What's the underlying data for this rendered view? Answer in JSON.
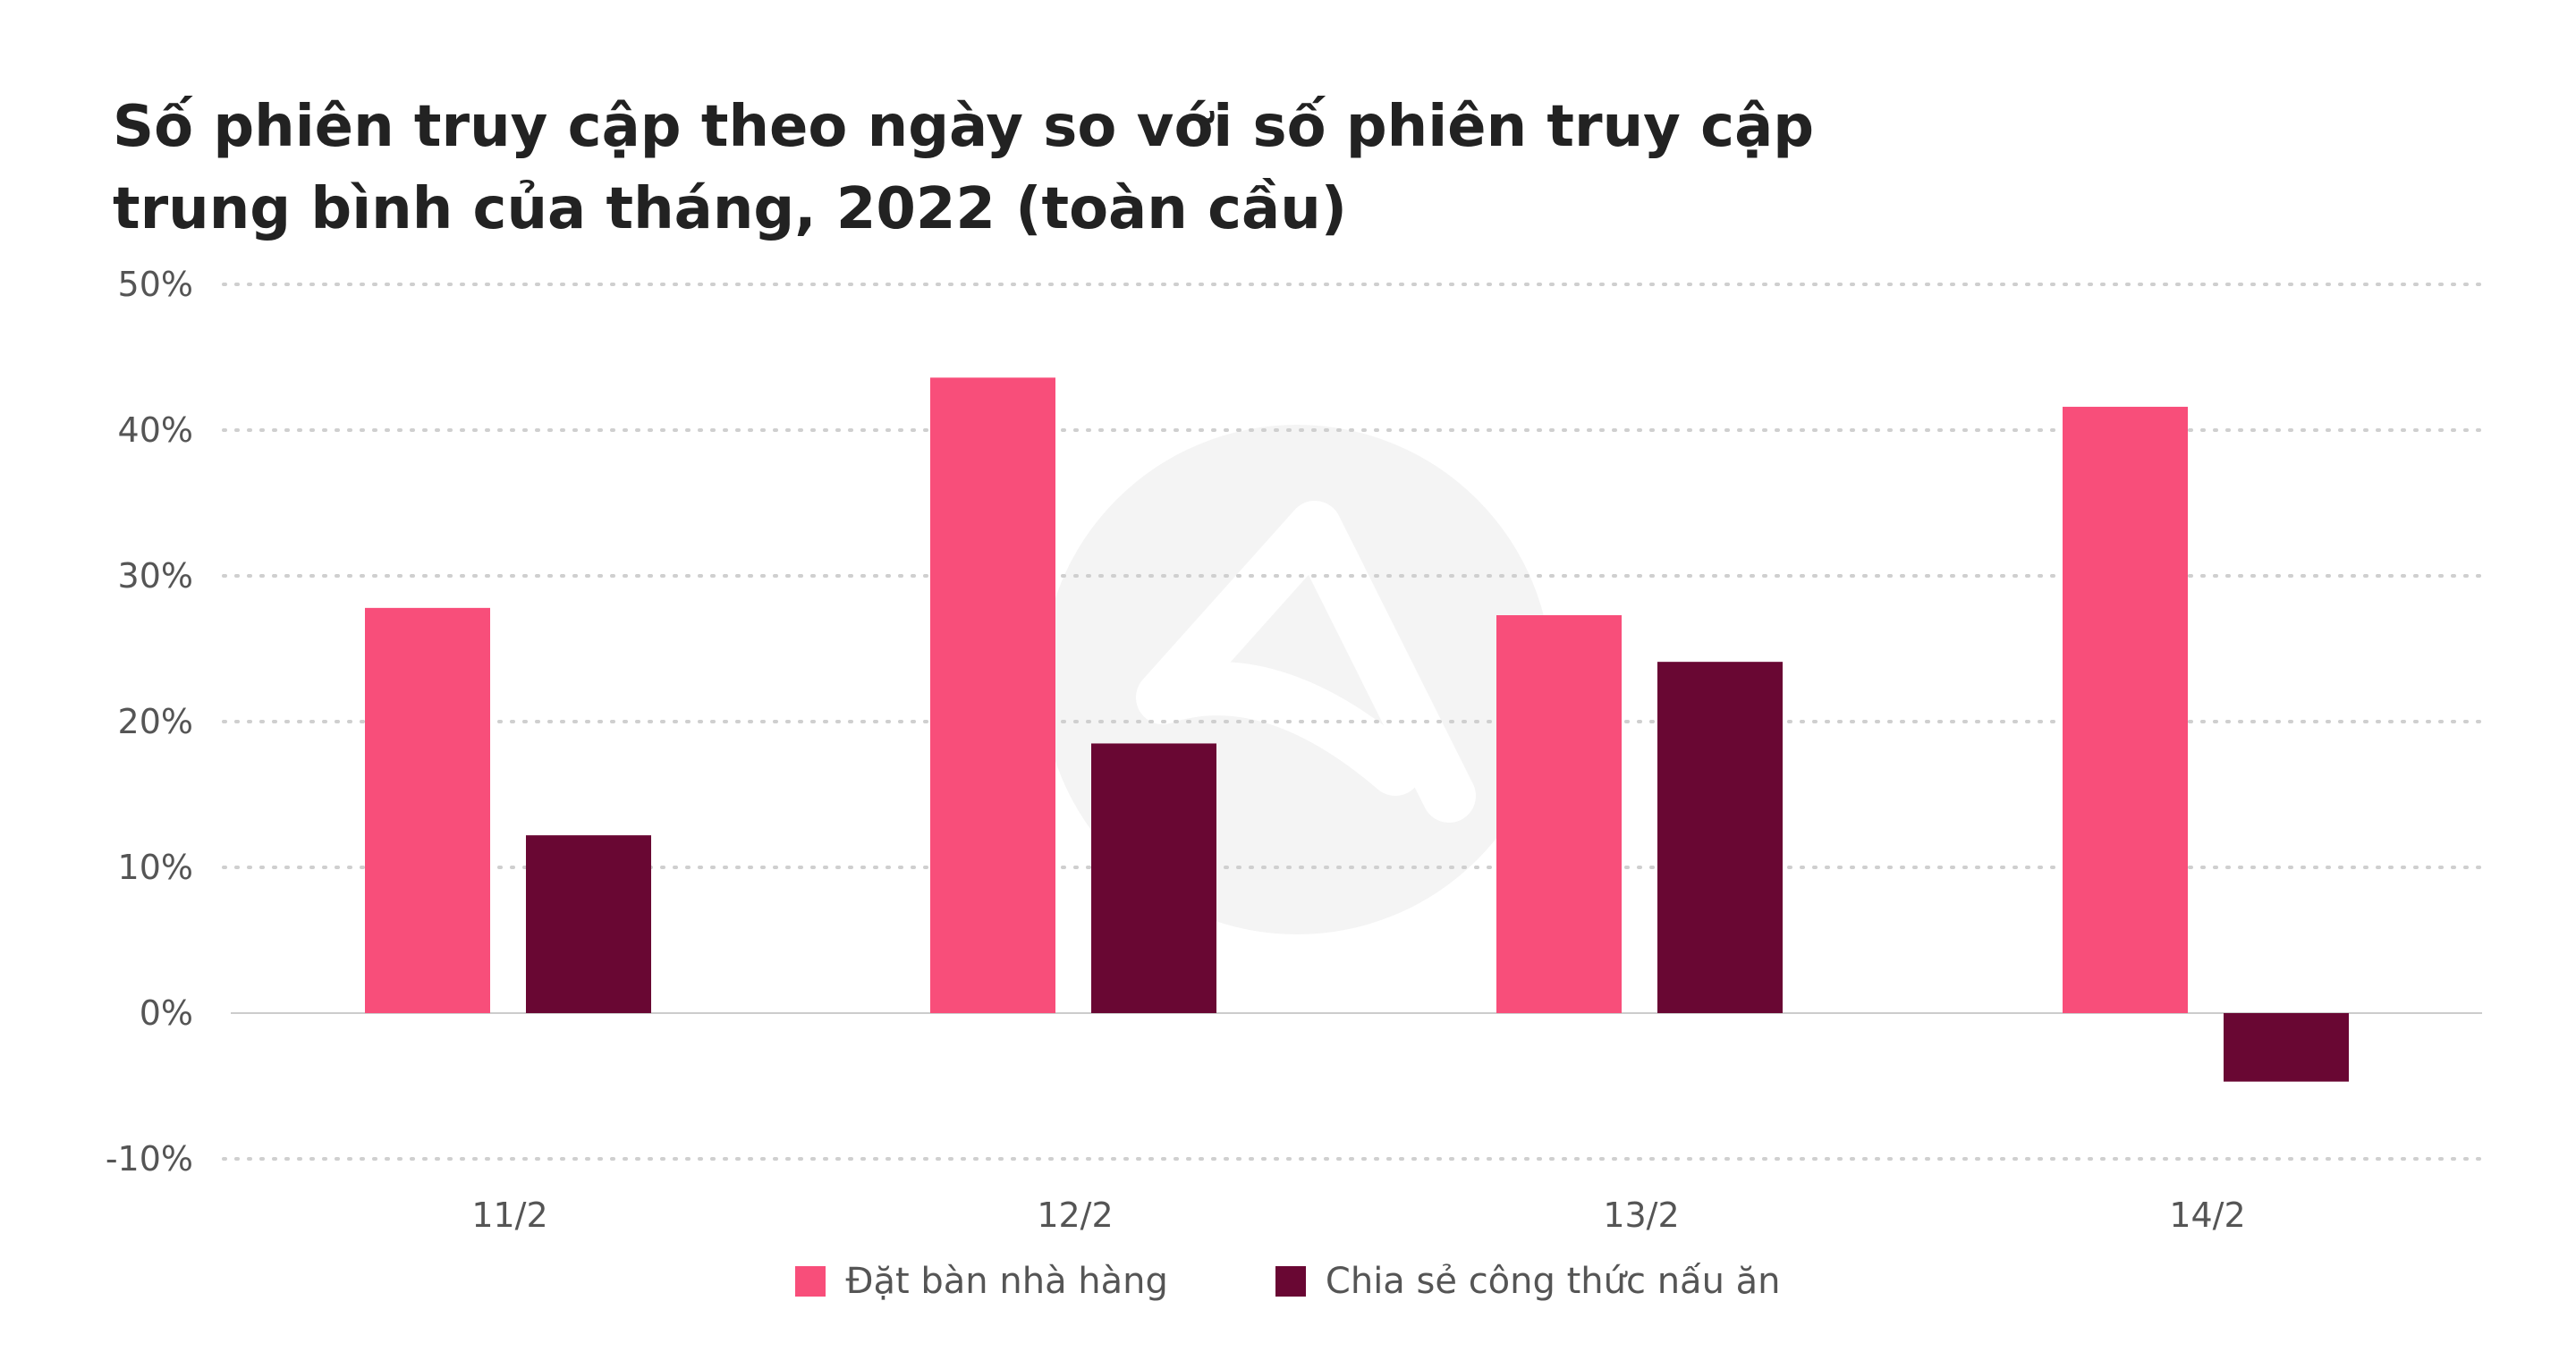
{
  "chart_data": {
    "type": "bar",
    "title": "Số phiên truy cập theo ngày so với số phiên truy cập trung bình của tháng, 2022 (toàn cầu)",
    "categories": [
      "11/2",
      "12/2",
      "13/2",
      "14/2"
    ],
    "series": [
      {
        "name": "Đặt bàn nhà hàng",
        "color": "#F84E7A",
        "values": [
          27.8,
          43.6,
          27.3,
          41.6
        ]
      },
      {
        "name": "Chia sẻ công thức nấu ăn",
        "color": "#690733",
        "values": [
          12.2,
          18.5,
          24.1,
          -4.7
        ]
      }
    ],
    "yticks": [
      "50%",
      "40%",
      "30%",
      "20%",
      "10%",
      "0%",
      "-10%"
    ],
    "ylim": [
      -10,
      50
    ],
    "grid": true,
    "legend_position": "bottom-center"
  },
  "colors": {
    "gridline": "#CFCFCF",
    "zero_line": "#CCCCCC",
    "watermark": "#F2F2F2"
  }
}
